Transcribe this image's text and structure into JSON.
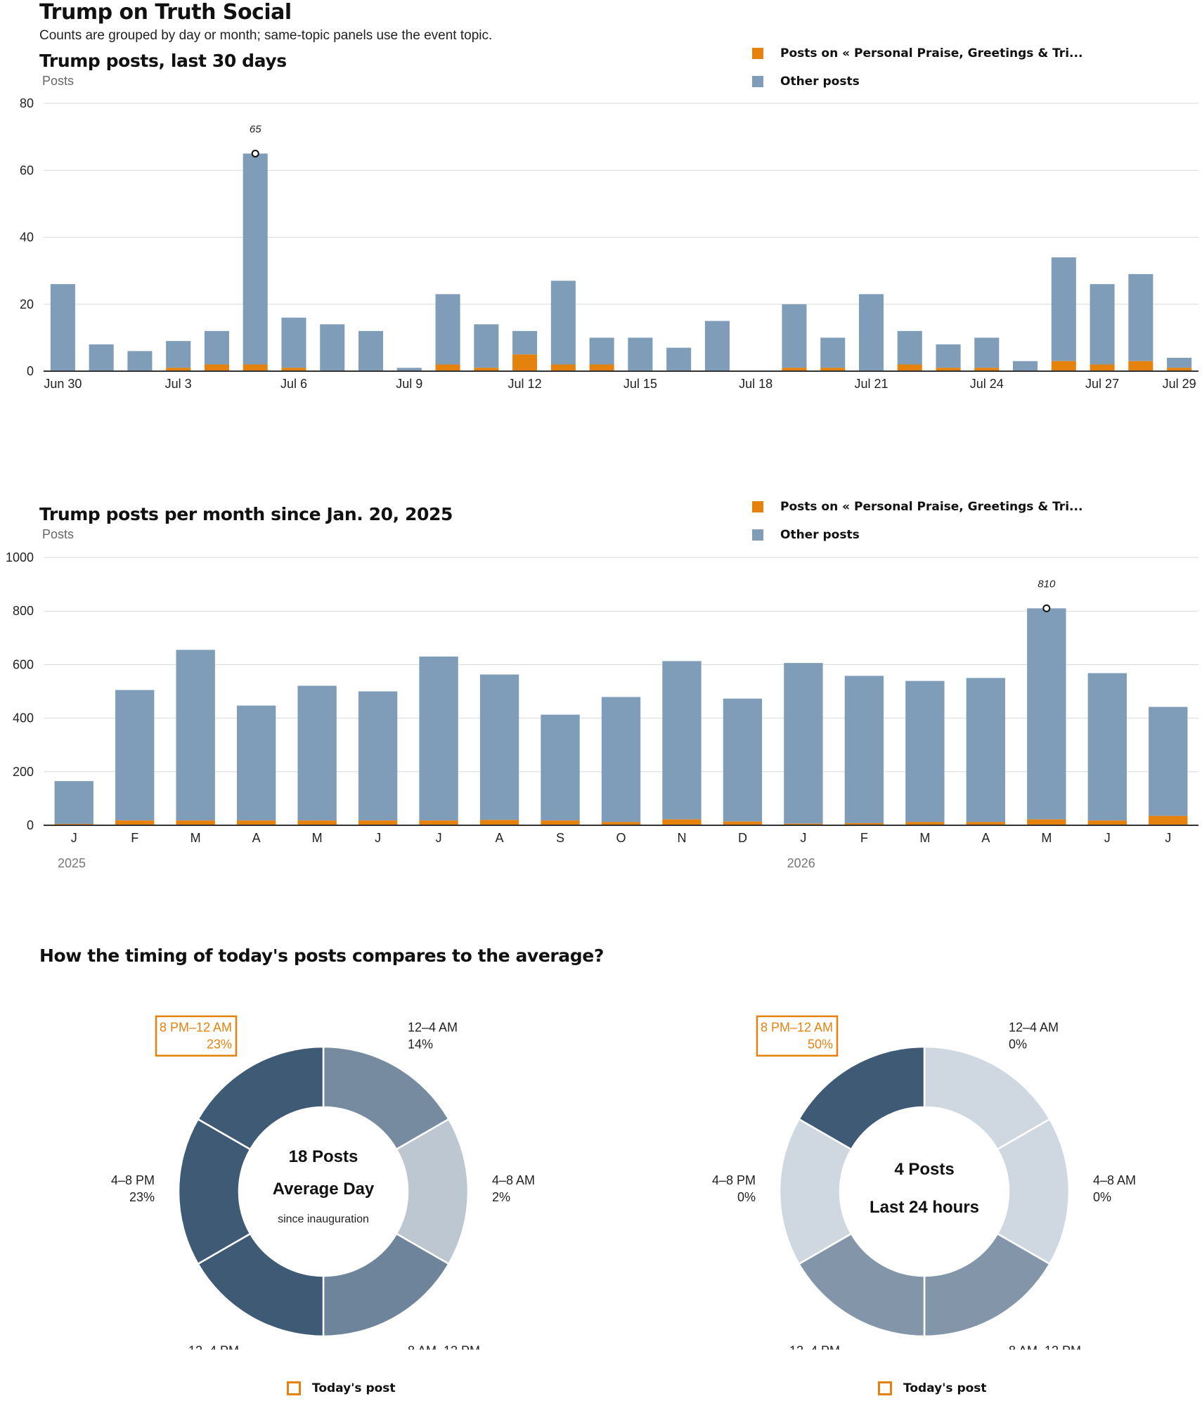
{
  "page": {
    "title": "Trump on Truth Social",
    "subtitle": "Counts are grouped by day or month; same-topic panels use the event topic."
  },
  "colors": {
    "topic": "#e5820e",
    "other": "#7f9db9",
    "axis": "#333333",
    "grid": "#d9d9d9",
    "donut_high": "#3f5a74",
    "donut_mid": "#768ba0",
    "donut_low": "#bcc7d2",
    "donut_zero": "#cfd8e1"
  },
  "legend": {
    "topic_label": "Posts on « Personal Praise, Greetings & Tri...",
    "other_label": "Other posts"
  },
  "chart_data": [
    {
      "type": "bar",
      "stacked": true,
      "title": "Trump posts, last 30 days",
      "ylabel": "Posts",
      "ylim": [
        0,
        80
      ],
      "yticks": [
        0,
        20,
        40,
        60,
        80
      ],
      "categories": [
        "Jun 30",
        "Jul 1",
        "Jul 2",
        "Jul 3",
        "Jul 4",
        "Jul 5",
        "Jul 6",
        "Jul 7",
        "Jul 8",
        "Jul 9",
        "Jul 10",
        "Jul 11",
        "Jul 12",
        "Jul 13",
        "Jul 14",
        "Jul 15",
        "Jul 16",
        "Jul 17",
        "Jul 18",
        "Jul 19",
        "Jul 20",
        "Jul 21",
        "Jul 22",
        "Jul 23",
        "Jul 24",
        "Jul 25",
        "Jul 26",
        "Jul 27",
        "Jul 28",
        "Jul 29"
      ],
      "xtick_labels": [
        {
          "index": 0,
          "label": "Jun 30"
        },
        {
          "index": 3,
          "label": "Jul 3"
        },
        {
          "index": 6,
          "label": "Jul 6"
        },
        {
          "index": 9,
          "label": "Jul 9"
        },
        {
          "index": 12,
          "label": "Jul 12"
        },
        {
          "index": 15,
          "label": "Jul 15"
        },
        {
          "index": 18,
          "label": "Jul 18"
        },
        {
          "index": 21,
          "label": "Jul 21"
        },
        {
          "index": 24,
          "label": "Jul 24"
        },
        {
          "index": 27,
          "label": "Jul 27"
        },
        {
          "index": 29,
          "label": "Jul 29"
        }
      ],
      "series": [
        {
          "name": "Posts on « Personal Praise, Greetings & Tri...",
          "values": [
            0,
            0,
            0,
            1,
            2,
            2,
            1,
            0,
            0,
            0,
            2,
            1,
            5,
            2,
            2,
            0,
            0,
            0,
            0,
            1,
            1,
            0,
            2,
            1,
            1,
            0,
            3,
            2,
            3,
            1
          ]
        },
        {
          "name": "Other posts",
          "values": [
            26,
            8,
            6,
            8,
            10,
            63,
            15,
            14,
            12,
            1,
            21,
            13,
            7,
            25,
            8,
            10,
            7,
            15,
            0,
            19,
            9,
            23,
            10,
            7,
            9,
            3,
            31,
            24,
            26,
            3
          ]
        }
      ],
      "annotation": {
        "index": 5,
        "label": "65",
        "value": 65
      },
      "grid": true,
      "legend_position": "top-right"
    },
    {
      "type": "bar",
      "stacked": true,
      "title": "Trump posts per month since Jan. 20, 2025",
      "ylabel": "Posts",
      "ylim": [
        0,
        1000
      ],
      "yticks": [
        0,
        200,
        400,
        600,
        800,
        1000
      ],
      "categories": [
        "J",
        "F",
        "M",
        "A",
        "M",
        "J",
        "J",
        "A",
        "S",
        "O",
        "N",
        "D",
        "J",
        "F",
        "M",
        "A",
        "M",
        "J",
        "J"
      ],
      "year_labels": [
        {
          "index": 0,
          "label": "2025"
        },
        {
          "index": 12,
          "label": "2026"
        }
      ],
      "series": [
        {
          "name": "Posts on « Personal Praise, Greetings & Tri...",
          "values": [
            5,
            18,
            18,
            18,
            18,
            18,
            18,
            20,
            18,
            12,
            22,
            14,
            6,
            8,
            12,
            12,
            22,
            18,
            35
          ]
        },
        {
          "name": "Other posts",
          "values": [
            160,
            487,
            637,
            429,
            503,
            482,
            612,
            543,
            395,
            467,
            591,
            459,
            600,
            550,
            527,
            538,
            788,
            550,
            407
          ]
        }
      ],
      "annotation": {
        "index": 16,
        "label": "810",
        "value": 810
      },
      "grid": true,
      "legend_position": "top-right"
    }
  ],
  "timing": {
    "title": "How the timing of today's posts compares to the average?",
    "today_legend": "Today's post",
    "donuts": [
      {
        "center_main": "18 Posts",
        "center_sub": "Average Day",
        "center_note": "since inauguration",
        "highlight_index": 5,
        "slices": [
          {
            "label": "12–4 AM",
            "value": "14%",
            "share": 14,
            "tone": "mid"
          },
          {
            "label": "4–8 AM",
            "value": "2%",
            "share": 2,
            "tone": "low"
          },
          {
            "label": "8 AM–12 PM",
            "value": "15%",
            "share": 15,
            "tone": "mid2"
          },
          {
            "label": "12–4 PM",
            "value": "22%",
            "share": 22,
            "tone": "high"
          },
          {
            "label": "4–8 PM",
            "value": "23%",
            "share": 23,
            "tone": "high"
          },
          {
            "label": "8 PM–12 AM",
            "value": "23%",
            "share": 23,
            "tone": "high"
          }
        ]
      },
      {
        "center_main": "4 Posts",
        "center_sub": "Last 24 hours",
        "center_note": "",
        "highlight_index": 5,
        "slices": [
          {
            "label": "12–4 AM",
            "value": "0%",
            "share": 0,
            "tone": "zero"
          },
          {
            "label": "4–8 AM",
            "value": "0%",
            "share": 0,
            "tone": "zero"
          },
          {
            "label": "8 AM–12 PM",
            "value": "25%",
            "share": 25,
            "tone": "mid3"
          },
          {
            "label": "12–4 PM",
            "value": "25%",
            "share": 25,
            "tone": "mid3"
          },
          {
            "label": "4–8 PM",
            "value": "0%",
            "share": 0,
            "tone": "zero"
          },
          {
            "label": "8 PM–12 AM",
            "value": "50%",
            "share": 50,
            "tone": "high"
          }
        ]
      }
    ]
  }
}
